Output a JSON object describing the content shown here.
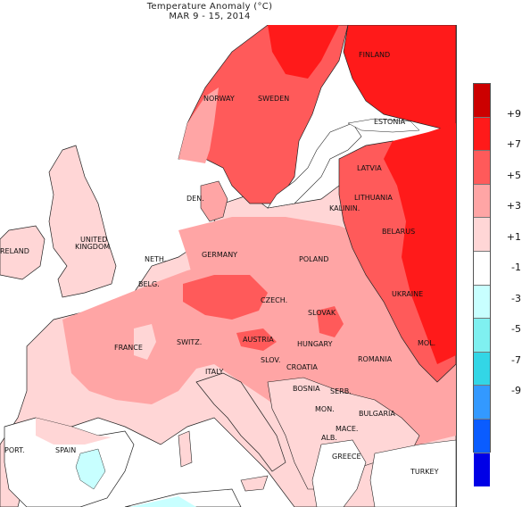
{
  "title": "Temperature Anomaly (°C)",
  "subtitle": "MAR 9 - 15, 2014",
  "legend": {
    "colors": [
      "#cc0000",
      "#ff1a1a",
      "#ff5a5a",
      "#ffa5a5",
      "#ffd6d6",
      "#ffffff",
      "#c8ffff",
      "#7ff0f0",
      "#33d6e6",
      "#3399ff",
      "#0a5cff",
      "#0000e6"
    ],
    "ticks": [
      "+9",
      "+7",
      "+5",
      "+3",
      "+1",
      "-1",
      "-3",
      "-5",
      "-7",
      "-9"
    ]
  },
  "countries": {
    "finland": "FINLAND",
    "norway": "NORWAY",
    "sweden": "SWEDEN",
    "estonia": "ESTONIA",
    "latvia": "LATVIA",
    "lithuania": "LITHUANIA",
    "kalinin": "KALININ.",
    "belarus": "BELARUS",
    "den": "DEN.",
    "united": "UNITED",
    "kingdom": "KINGDOM",
    "ireland": "RELAND",
    "neth": "NETH.",
    "germany": "GERMANY",
    "poland": "POLAND",
    "belg": "BELG.",
    "czech": "CZECH.",
    "ukraine": "UKRAINE",
    "slovak": "SLOVAK",
    "france": "FRANCE",
    "switz": "SWITZ.",
    "austria": "AUSTRIA",
    "hungary": "HUNGARY",
    "mol": "MOL.",
    "romania": "ROMANIA",
    "slov": "SLOV.",
    "croatia": "CROATIA",
    "italy": "ITALY",
    "bosnia": "BOSNIA",
    "serb": "SERB.",
    "mon": "MON.",
    "bulgaria": "BULGARIA",
    "mace": "MACE.",
    "port": "PORT.",
    "spain": "SPAIN",
    "alb": "ALB.",
    "greece": "GREECE",
    "turkey": "TURKEY"
  }
}
